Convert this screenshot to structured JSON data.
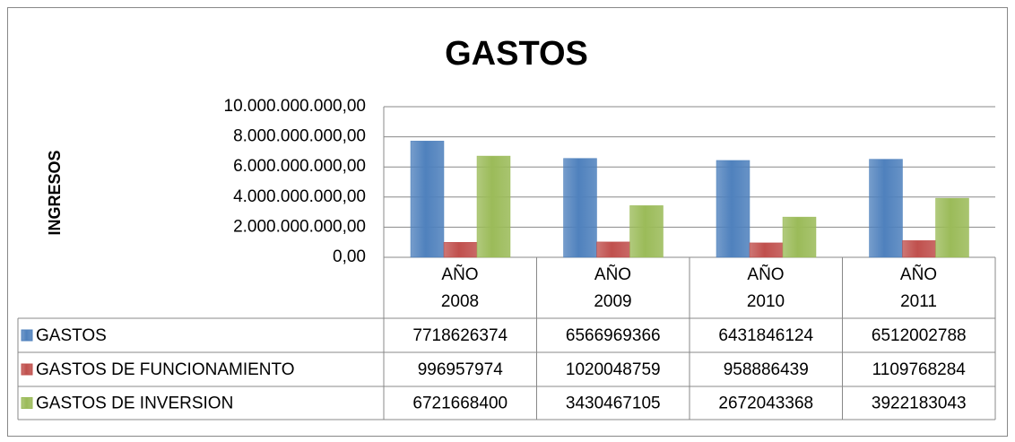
{
  "chart_data": {
    "type": "bar",
    "title": "GASTOS",
    "y_label": "INGRESOS",
    "categories": [
      "AÑO 2008",
      "AÑO 2009",
      "AÑO 2010",
      "AÑO 2011"
    ],
    "series": [
      {
        "name": "GASTOS",
        "color": "#4f81bd",
        "values": [
          7718626374,
          6566969366,
          6431846124,
          6512002788
        ]
      },
      {
        "name": "GASTOS DE FUNCIONAMIENTO",
        "color": "#c0504d",
        "values": [
          996957974,
          1020048759,
          958886439,
          1109768284
        ]
      },
      {
        "name": "GASTOS DE INVERSION",
        "color": "#9bbb59",
        "values": [
          6721668400,
          3430467105,
          2672043368,
          3922183043
        ]
      }
    ],
    "ylim": [
      0,
      10000000000
    ],
    "yticks": [
      {
        "value": 0,
        "label": "0,00"
      },
      {
        "value": 2000000000,
        "label": "2.000.000.000,00"
      },
      {
        "value": 4000000000,
        "label": "4.000.000.000,00"
      },
      {
        "value": 6000000000,
        "label": "6.000.000.000,00"
      },
      {
        "value": 8000000000,
        "label": "8.000.000.000,00"
      },
      {
        "value": 10000000000,
        "label": "10.000.000.000,00"
      }
    ],
    "grid": true,
    "data_table": true
  }
}
